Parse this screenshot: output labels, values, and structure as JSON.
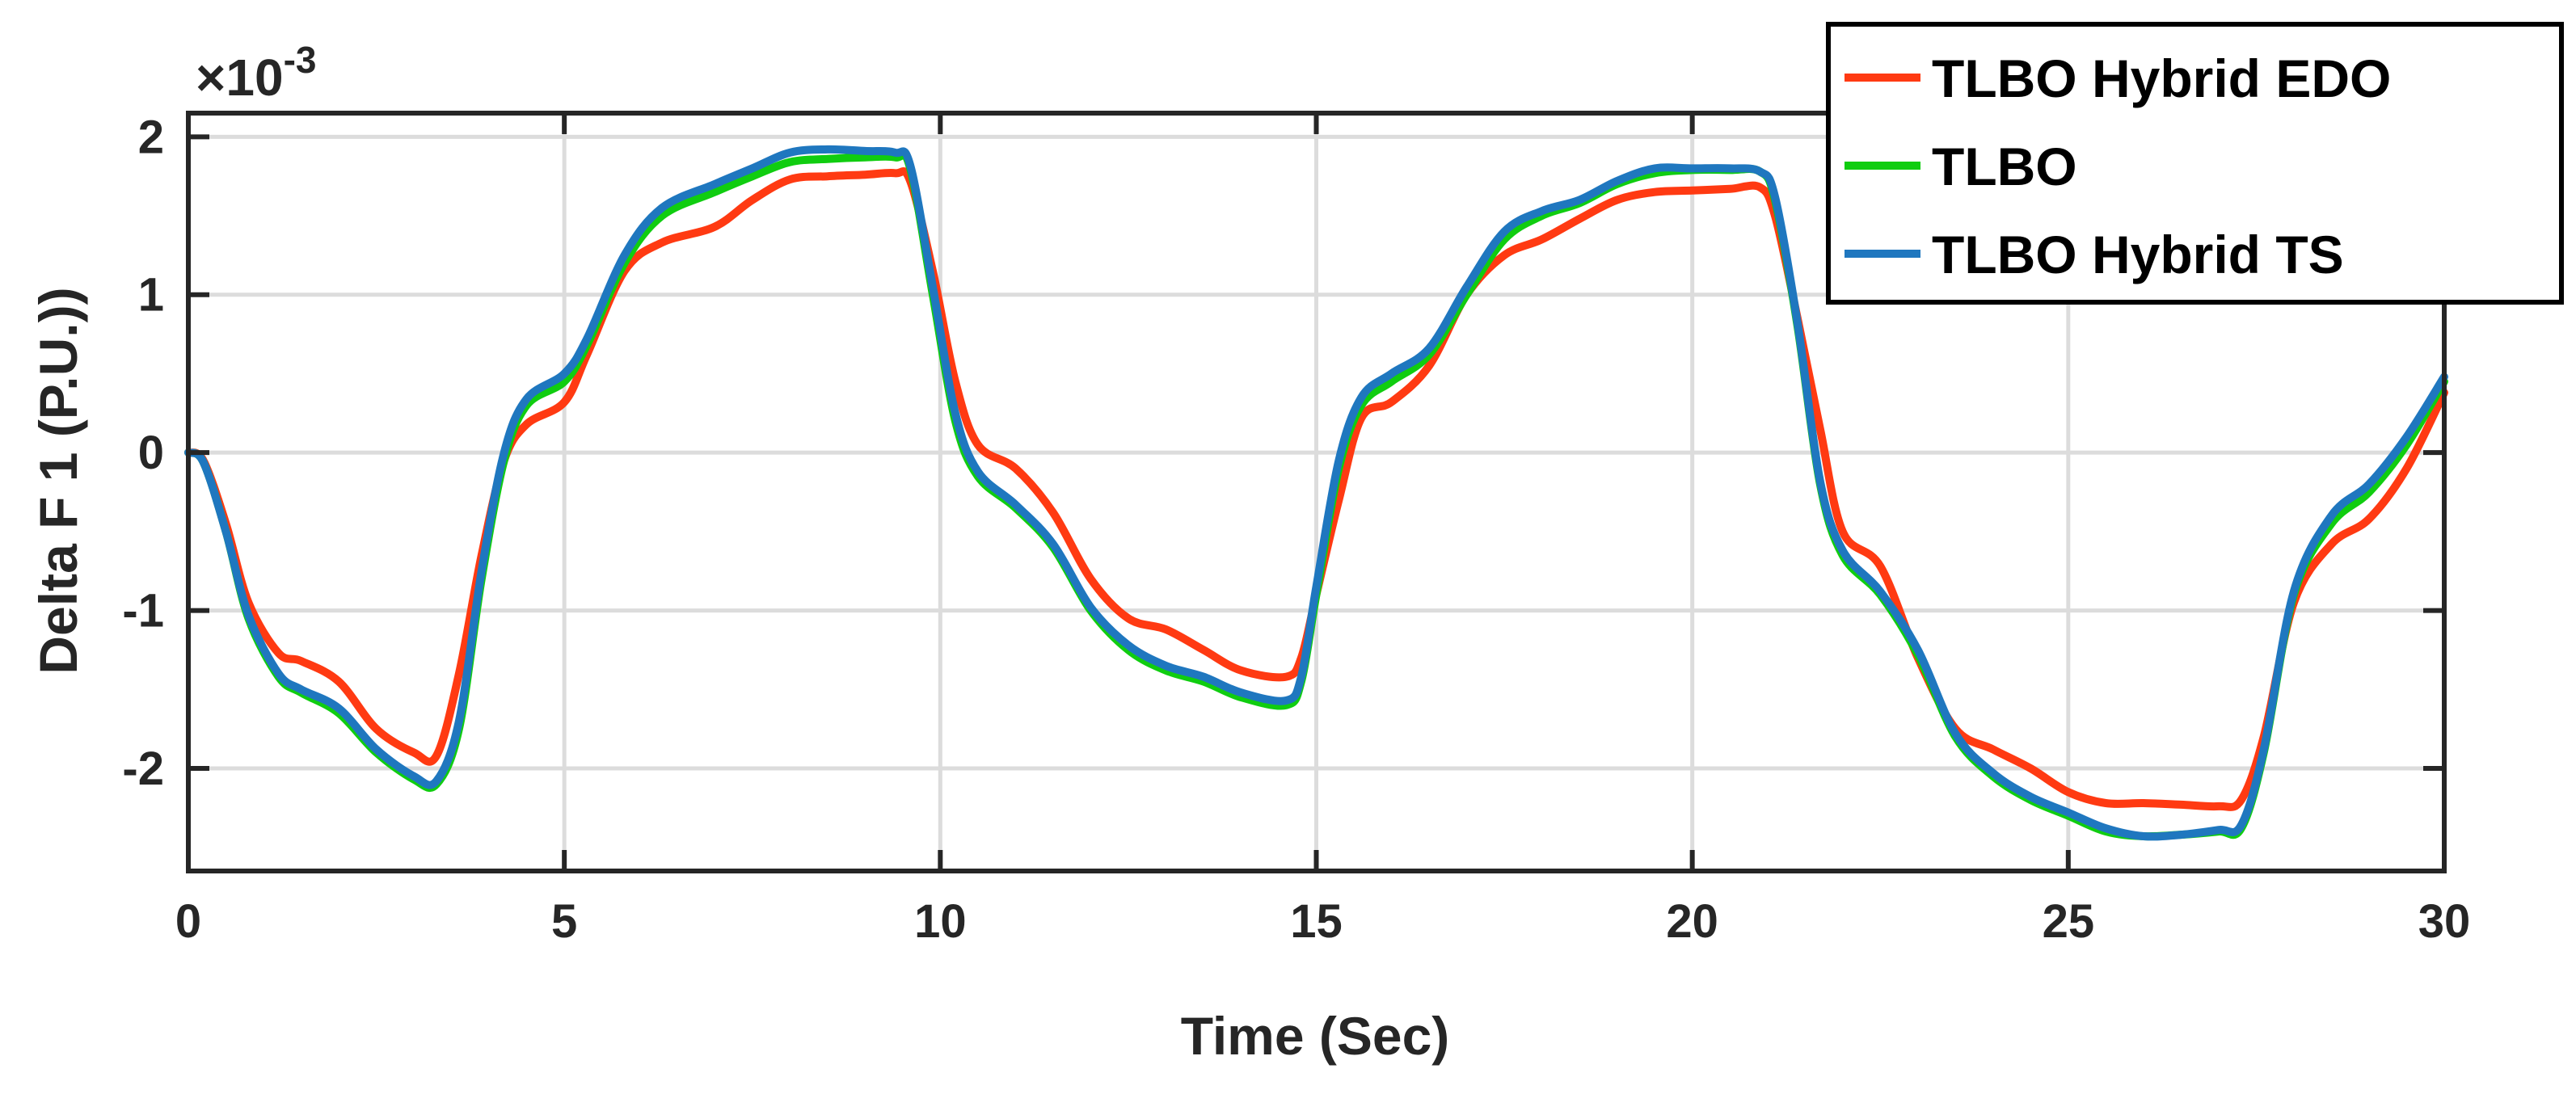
{
  "chart_data": {
    "type": "line",
    "xlabel": "Time (Sec)",
    "ylabel": "Delta F 1 (P.U.))",
    "y_exponent_label": "×10",
    "y_exponent": "-3",
    "xlim": [
      0,
      30
    ],
    "ylim": [
      -2.65,
      2.15
    ],
    "x_ticks": [
      0,
      5,
      10,
      15,
      20,
      25,
      30
    ],
    "x_tick_labels": [
      "0",
      "5",
      "10",
      "15",
      "20",
      "25",
      "30"
    ],
    "y_ticks": [
      -2,
      -1,
      0,
      1,
      2
    ],
    "y_tick_labels": [
      "-2",
      "-1",
      "0",
      "1",
      "2"
    ],
    "grid": true,
    "legend_position": "top-right",
    "series": [
      {
        "name": "TLBO Hybrid EDO",
        "color": "#ff3a12",
        "x": [
          0,
          0.2,
          0.5,
          0.8,
          1.2,
          1.5,
          2.0,
          2.5,
          3.0,
          3.3,
          3.6,
          3.9,
          4.2,
          4.5,
          5.0,
          5.3,
          5.8,
          6.3,
          7.0,
          7.5,
          8.0,
          8.5,
          9.0,
          9.4,
          9.6,
          9.9,
          10.2,
          10.5,
          11.0,
          11.5,
          12.0,
          12.5,
          13.0,
          13.5,
          14.0,
          14.6,
          14.8,
          15.0,
          15.3,
          15.6,
          16.0,
          16.5,
          17.0,
          17.5,
          18.0,
          18.5,
          19.0,
          19.5,
          20.0,
          20.5,
          20.9,
          21.1,
          21.4,
          21.7,
          22.0,
          22.5,
          23.0,
          23.5,
          24.0,
          24.5,
          25.0,
          25.5,
          26.0,
          26.5,
          27.0,
          27.3,
          27.6,
          28.0,
          28.5,
          29.0,
          29.5,
          30.0
        ],
        "y": [
          0,
          -0.05,
          -0.45,
          -0.95,
          -1.27,
          -1.32,
          -1.45,
          -1.75,
          -1.9,
          -1.92,
          -1.4,
          -0.65,
          -0.05,
          0.18,
          0.32,
          0.62,
          1.15,
          1.33,
          1.43,
          1.6,
          1.73,
          1.75,
          1.76,
          1.77,
          1.72,
          1.15,
          0.45,
          0.05,
          -0.1,
          -0.38,
          -0.8,
          -1.05,
          -1.12,
          -1.25,
          -1.38,
          -1.42,
          -1.3,
          -0.9,
          -0.3,
          0.22,
          0.32,
          0.55,
          1.0,
          1.25,
          1.35,
          1.48,
          1.6,
          1.65,
          1.66,
          1.67,
          1.68,
          1.5,
          0.85,
          0.15,
          -0.5,
          -0.72,
          -1.3,
          -1.75,
          -1.88,
          -2.0,
          -2.15,
          -2.22,
          -2.22,
          -2.23,
          -2.24,
          -2.2,
          -1.8,
          -0.95,
          -0.58,
          -0.42,
          -0.1,
          0.38
        ]
      },
      {
        "name": "TLBO",
        "color": "#10cd10",
        "x": [
          0,
          0.2,
          0.5,
          0.8,
          1.2,
          1.5,
          2.0,
          2.5,
          3.0,
          3.3,
          3.6,
          3.9,
          4.2,
          4.5,
          5.0,
          5.3,
          5.8,
          6.3,
          7.0,
          7.5,
          8.0,
          8.5,
          9.0,
          9.4,
          9.6,
          9.9,
          10.2,
          10.5,
          11.0,
          11.5,
          12.0,
          12.5,
          13.0,
          13.5,
          14.0,
          14.6,
          14.8,
          15.0,
          15.3,
          15.6,
          16.0,
          16.5,
          17.0,
          17.5,
          18.0,
          18.5,
          19.0,
          19.5,
          20.0,
          20.5,
          20.9,
          21.1,
          21.4,
          21.7,
          22.0,
          22.5,
          23.0,
          23.5,
          24.0,
          24.5,
          25.0,
          25.5,
          26.0,
          26.5,
          27.0,
          27.3,
          27.6,
          28.0,
          28.5,
          29.0,
          29.5,
          30.0
        ],
        "y": [
          0,
          -0.06,
          -0.5,
          -1.05,
          -1.42,
          -1.52,
          -1.65,
          -1.9,
          -2.07,
          -2.1,
          -1.75,
          -0.8,
          -0.05,
          0.3,
          0.45,
          0.68,
          1.2,
          1.5,
          1.65,
          1.75,
          1.84,
          1.86,
          1.87,
          1.87,
          1.8,
          1.0,
          0.2,
          -0.15,
          -0.35,
          -0.6,
          -1.0,
          -1.25,
          -1.38,
          -1.45,
          -1.55,
          -1.6,
          -1.45,
          -0.9,
          -0.1,
          0.3,
          0.45,
          0.62,
          1.0,
          1.35,
          1.5,
          1.58,
          1.7,
          1.77,
          1.79,
          1.79,
          1.78,
          1.6,
          0.8,
          -0.2,
          -0.65,
          -0.9,
          -1.28,
          -1.8,
          -2.05,
          -2.2,
          -2.3,
          -2.4,
          -2.43,
          -2.42,
          -2.4,
          -2.38,
          -1.9,
          -0.9,
          -0.45,
          -0.25,
          0.05,
          0.45
        ]
      },
      {
        "name": "TLBO Hybrid TS",
        "color": "#1f77bf",
        "x": [
          0,
          0.2,
          0.5,
          0.8,
          1.2,
          1.5,
          2.0,
          2.5,
          3.0,
          3.3,
          3.6,
          3.9,
          4.2,
          4.5,
          5.0,
          5.3,
          5.8,
          6.3,
          7.0,
          7.5,
          8.0,
          8.5,
          9.0,
          9.4,
          9.6,
          9.9,
          10.2,
          10.5,
          11.0,
          11.5,
          12.0,
          12.5,
          13.0,
          13.5,
          14.0,
          14.6,
          14.8,
          15.0,
          15.3,
          15.6,
          16.0,
          16.5,
          17.0,
          17.5,
          18.0,
          18.5,
          19.0,
          19.5,
          20.0,
          20.5,
          20.9,
          21.1,
          21.4,
          21.7,
          22.0,
          22.5,
          23.0,
          23.5,
          24.0,
          24.5,
          25.0,
          25.5,
          26.0,
          26.5,
          27.0,
          27.3,
          27.6,
          28.0,
          28.5,
          29.0,
          29.5,
          30.0
        ],
        "y": [
          0,
          -0.06,
          -0.5,
          -1.03,
          -1.4,
          -1.5,
          -1.62,
          -1.88,
          -2.05,
          -2.08,
          -1.7,
          -0.75,
          0.0,
          0.34,
          0.5,
          0.72,
          1.25,
          1.55,
          1.7,
          1.8,
          1.9,
          1.92,
          1.91,
          1.9,
          1.82,
          1.05,
          0.25,
          -0.12,
          -0.33,
          -0.58,
          -0.98,
          -1.22,
          -1.35,
          -1.42,
          -1.52,
          -1.57,
          -1.42,
          -0.85,
          -0.05,
          0.35,
          0.5,
          0.66,
          1.05,
          1.4,
          1.53,
          1.6,
          1.72,
          1.8,
          1.8,
          1.8,
          1.78,
          1.62,
          0.82,
          -0.18,
          -0.62,
          -0.88,
          -1.25,
          -1.78,
          -2.03,
          -2.18,
          -2.28,
          -2.38,
          -2.43,
          -2.42,
          -2.39,
          -2.36,
          -1.88,
          -0.88,
          -0.4,
          -0.2,
          0.1,
          0.48
        ]
      }
    ]
  }
}
